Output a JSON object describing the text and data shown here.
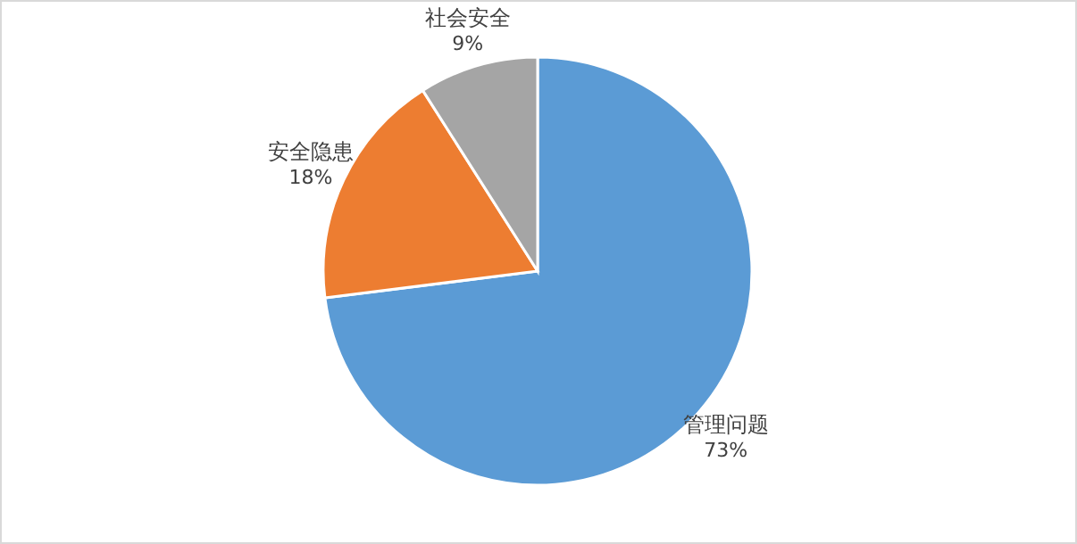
{
  "chart_data": {
    "type": "pie",
    "categories": [
      "管理问题",
      "安全隐患",
      "社会安全"
    ],
    "values": [
      73,
      18,
      9
    ],
    "colors": [
      "#5b9bd5",
      "#ed7d31",
      "#a5a5a5"
    ],
    "value_labels": [
      "73%",
      "18%",
      "9%"
    ]
  }
}
